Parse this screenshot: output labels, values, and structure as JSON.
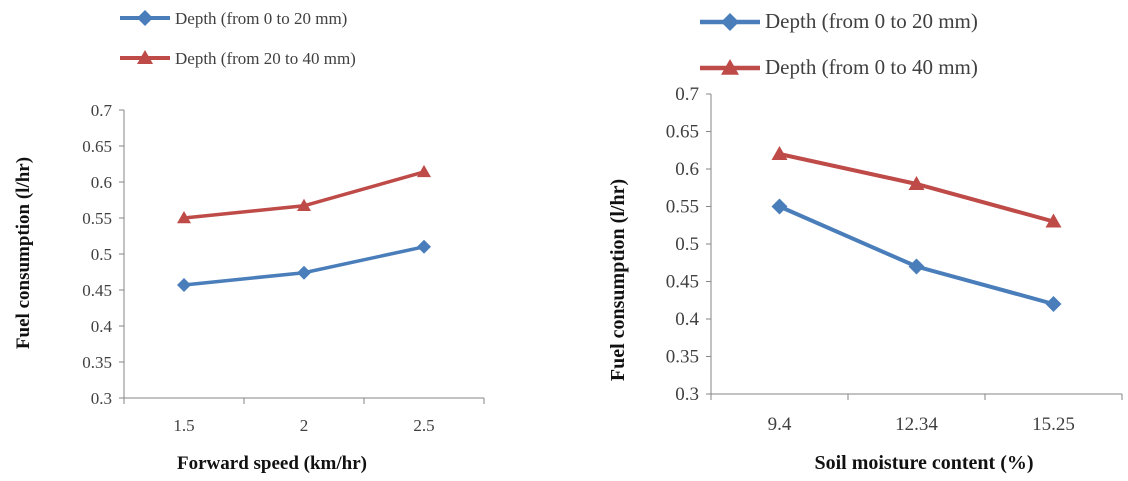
{
  "chart_data": [
    {
      "type": "line",
      "x_type": "category",
      "categories": [
        "1.5",
        "2",
        "2.5"
      ],
      "series": [
        {
          "name": "Depth (from 0 to 20 mm)",
          "values": [
            0.457,
            0.474,
            0.51
          ],
          "color": "#4a7ebb",
          "marker": "diamond"
        },
        {
          "name": "Depth (from 20 to 40 mm)",
          "values": [
            0.55,
            0.567,
            0.614
          ],
          "color": "#be4b48",
          "marker": "triangle"
        }
      ],
      "title": "",
      "xlabel": "Forward speed (km/hr)",
      "ylabel": "Fuel consumption (l/hr)",
      "ylim": [
        0.3,
        0.7
      ],
      "yticks": [
        "0.3",
        "0.35",
        "0.4",
        "0.45",
        "0.5",
        "0.55",
        "0.6",
        "0.65",
        "0.7"
      ],
      "legend_position": "top-left",
      "grid": false
    },
    {
      "type": "line",
      "x_type": "category",
      "categories": [
        "9.4",
        "12.34",
        "15.25"
      ],
      "series": [
        {
          "name": "Depth  (from  0 to 20 mm)",
          "values": [
            0.55,
            0.47,
            0.42
          ],
          "color": "#4a7ebb",
          "marker": "diamond"
        },
        {
          "name": "Depth  (from  0 to 40 mm)",
          "values": [
            0.62,
            0.58,
            0.53
          ],
          "color": "#be4b48",
          "marker": "triangle"
        }
      ],
      "title": "",
      "xlabel": "Soil moisture content (%)",
      "ylabel": "Fuel consumption (l/hr)",
      "ylim": [
        0.3,
        0.7
      ],
      "yticks": [
        "0.3",
        "0.35",
        "0.4",
        "0.45",
        "0.5",
        "0.55",
        "0.6",
        "0.65",
        "0.7"
      ],
      "legend_position": "top-left",
      "grid": false
    }
  ]
}
